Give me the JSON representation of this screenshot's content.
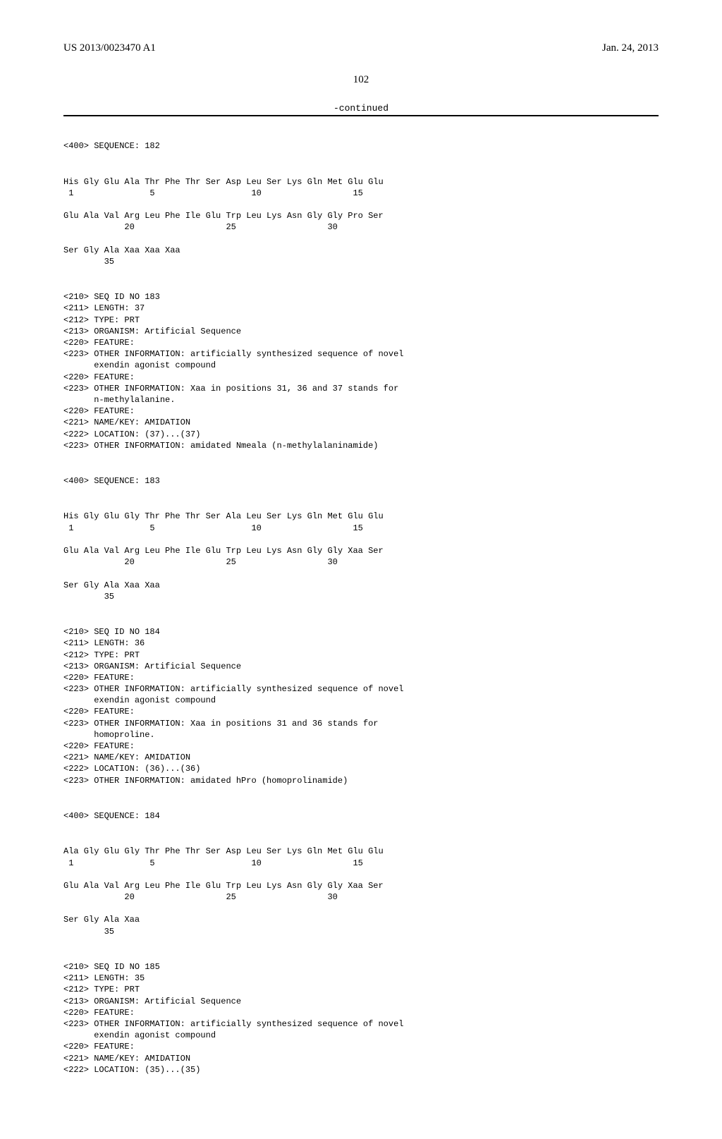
{
  "header": {
    "left": "US 2013/0023470 A1",
    "right": "Jan. 24, 2013"
  },
  "page_number": "102",
  "continued_label": "-continued",
  "content": {
    "seq182_header": "<400> SEQUENCE: 182",
    "seq182_body": "His Gly Glu Ala Thr Phe Thr Ser Asp Leu Ser Lys Gln Met Glu Glu\n 1               5                   10                  15\n\nGlu Ala Val Arg Leu Phe Ile Glu Trp Leu Lys Asn Gly Gly Pro Ser\n            20                  25                  30\n\nSer Gly Ala Xaa Xaa Xaa\n        35",
    "meta183": "<210> SEQ ID NO 183\n<211> LENGTH: 37\n<212> TYPE: PRT\n<213> ORGANISM: Artificial Sequence\n<220> FEATURE:\n<223> OTHER INFORMATION: artificially synthesized sequence of novel\n      exendin agonist compound\n<220> FEATURE:\n<223> OTHER INFORMATION: Xaa in positions 31, 36 and 37 stands for\n      n-methylalanine.\n<220> FEATURE:\n<221> NAME/KEY: AMIDATION\n<222> LOCATION: (37)...(37)\n<223> OTHER INFORMATION: amidated Nmeala (n-methylalaninamide)",
    "seq183_header": "<400> SEQUENCE: 183",
    "seq183_body": "His Gly Glu Gly Thr Phe Thr Ser Ala Leu Ser Lys Gln Met Glu Glu\n 1               5                   10                  15\n\nGlu Ala Val Arg Leu Phe Ile Glu Trp Leu Lys Asn Gly Gly Xaa Ser\n            20                  25                  30\n\nSer Gly Ala Xaa Xaa\n        35",
    "meta184": "<210> SEQ ID NO 184\n<211> LENGTH: 36\n<212> TYPE: PRT\n<213> ORGANISM: Artificial Sequence\n<220> FEATURE:\n<223> OTHER INFORMATION: artificially synthesized sequence of novel\n      exendin agonist compound\n<220> FEATURE:\n<223> OTHER INFORMATION: Xaa in positions 31 and 36 stands for\n      homoproline.\n<220> FEATURE:\n<221> NAME/KEY: AMIDATION\n<222> LOCATION: (36)...(36)\n<223> OTHER INFORMATION: amidated hPro (homoprolinamide)",
    "seq184_header": "<400> SEQUENCE: 184",
    "seq184_body": "Ala Gly Glu Gly Thr Phe Thr Ser Asp Leu Ser Lys Gln Met Glu Glu\n 1               5                   10                  15\n\nGlu Ala Val Arg Leu Phe Ile Glu Trp Leu Lys Asn Gly Gly Xaa Ser\n            20                  25                  30\n\nSer Gly Ala Xaa\n        35",
    "meta185": "<210> SEQ ID NO 185\n<211> LENGTH: 35\n<212> TYPE: PRT\n<213> ORGANISM: Artificial Sequence\n<220> FEATURE:\n<223> OTHER INFORMATION: artificially synthesized sequence of novel\n      exendin agonist compound\n<220> FEATURE:\n<221> NAME/KEY: AMIDATION\n<222> LOCATION: (35)...(35)"
  }
}
